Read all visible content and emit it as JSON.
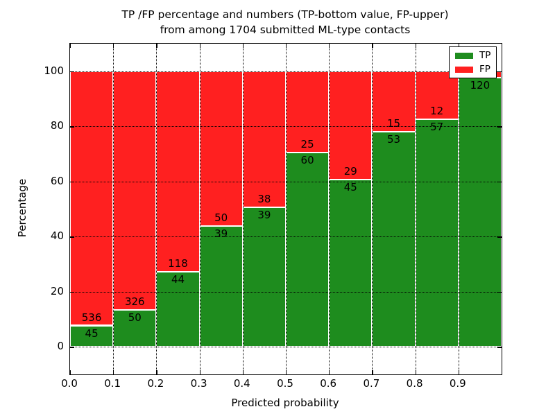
{
  "title": {
    "line1": "TP /FP percentage and numbers (TP-bottom value, FP-upper)",
    "line2": "from among 1704 submitted ML-type contacts"
  },
  "axes": {
    "xlabel": "Predicted probability",
    "ylabel": "Percentage",
    "x_tick_labels": [
      "0.0",
      "0.1",
      "0.2",
      "0.3",
      "0.4",
      "0.5",
      "0.6",
      "0.7",
      "0.8",
      "0.9"
    ],
    "x_tick_values": [
      0.0,
      0.1,
      0.2,
      0.3,
      0.4,
      0.5,
      0.6,
      0.7,
      0.8,
      0.9
    ],
    "y_tick_labels": [
      "0",
      "20",
      "40",
      "60",
      "80",
      "100"
    ],
    "y_tick_values": [
      0,
      20,
      40,
      60,
      80,
      100
    ],
    "xlim": [
      0.0,
      1.0
    ],
    "ylim": [
      -10,
      110
    ],
    "grid": "dotted-black"
  },
  "legend": {
    "position": "upper-right",
    "items": [
      {
        "label": "TP",
        "color": "#1e8c1e"
      },
      {
        "label": "FP",
        "color": "#ff2020"
      }
    ]
  },
  "colors": {
    "tp_green": "#1e8c1e",
    "fp_red": "#ff2020",
    "bar_edge": "#ffffff",
    "text": "#000000"
  },
  "chart_data": {
    "type": "bar",
    "stacked": true,
    "normalized_to": "percent of bin total (TP+FP = 100%)",
    "title": "TP /FP percentage and numbers (TP-bottom value, FP-upper) from among 1704 submitted ML-type contacts",
    "xlabel": "Predicted probability",
    "ylabel": "Percentage",
    "bin_edges": [
      0.0,
      0.1,
      0.2,
      0.3,
      0.4,
      0.5,
      0.6,
      0.7,
      0.8,
      0.9,
      1.0
    ],
    "series": [
      {
        "name": "TP",
        "counts": [
          45,
          50,
          44,
          39,
          39,
          60,
          45,
          53,
          57,
          120
        ]
      },
      {
        "name": "FP",
        "counts": [
          536,
          326,
          118,
          50,
          38,
          25,
          29,
          15,
          12,
          3
        ]
      }
    ],
    "tp_value_labels": [
      "45",
      "50",
      "44",
      "39",
      "39",
      "60",
      "45",
      "53",
      "57",
      "120"
    ],
    "fp_value_labels": [
      "536",
      "326",
      "118",
      "50",
      "38",
      "25",
      "29",
      "15",
      "12",
      ""
    ],
    "total_contacts": 1704,
    "ylim": [
      -10,
      110
    ],
    "legend_position": "upper-right"
  }
}
